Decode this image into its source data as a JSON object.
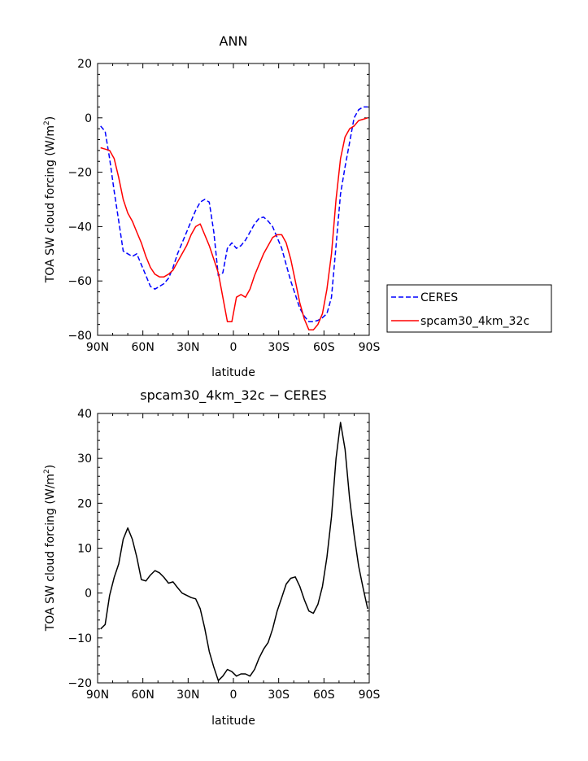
{
  "chart_data": [
    {
      "type": "line",
      "title": "ANN",
      "xlabel": "latitude",
      "ylabel": "TOA SW cloud forcing (W/m",
      "ylabel_sup": "2",
      "ylabel_close": ")",
      "xlim": [
        90,
        -90
      ],
      "ylim": [
        -80,
        20
      ],
      "x_ticks": [
        {
          "value": 90,
          "label": "90N"
        },
        {
          "value": 60,
          "label": "60N"
        },
        {
          "value": 30,
          "label": "30N"
        },
        {
          "value": 0,
          "label": "0"
        },
        {
          "value": -30,
          "label": "30S"
        },
        {
          "value": -60,
          "label": "60S"
        },
        {
          "value": -90,
          "label": "90S"
        }
      ],
      "y_ticks": [
        20,
        0,
        -20,
        -40,
        -60,
        -80
      ],
      "legend_position": "right",
      "series": [
        {
          "name": "CERES",
          "color": "#0000ff",
          "dash": "dashed",
          "x": [
            88,
            85,
            82,
            79,
            76,
            73,
            70,
            67,
            64,
            61,
            58,
            55,
            52,
            49,
            46,
            43,
            40,
            37,
            34,
            31,
            28,
            25,
            22,
            19,
            16,
            13,
            10,
            7,
            4,
            1,
            -2,
            -5,
            -8,
            -11,
            -14,
            -17,
            -20,
            -23,
            -26,
            -29,
            -32,
            -35,
            -38,
            -41,
            -44,
            -47,
            -50,
            -53,
            -56,
            -59,
            -62,
            -65,
            -68,
            -71,
            -74,
            -77,
            -80,
            -83,
            -86,
            -89
          ],
          "y": [
            -3,
            -5,
            -15,
            -27,
            -38,
            -49,
            -50,
            -51,
            -50,
            -54,
            -58,
            -62,
            -63,
            -62,
            -61,
            -59,
            -55,
            -50,
            -46,
            -42,
            -38,
            -34,
            -31,
            -30,
            -31,
            -42,
            -58,
            -57,
            -48,
            -46,
            -48,
            -47,
            -45,
            -42,
            -39,
            -37,
            -36.5,
            -38,
            -40,
            -44,
            -48,
            -54,
            -60,
            -65,
            -70,
            -73,
            -75,
            -75,
            -74.5,
            -73.5,
            -72,
            -66,
            -47,
            -28,
            -18,
            -9,
            0,
            3,
            4,
            4
          ]
        },
        {
          "name": "spcam30_4km_32c",
          "color": "#ff0000",
          "dash": "solid",
          "x": [
            88,
            85,
            82,
            79,
            76,
            73,
            70,
            67,
            64,
            61,
            58,
            55,
            52,
            49,
            46,
            43,
            40,
            37,
            34,
            31,
            28,
            25,
            22,
            19,
            16,
            13,
            10,
            7,
            4,
            1,
            -2,
            -5,
            -8,
            -11,
            -14,
            -17,
            -20,
            -23,
            -26,
            -29,
            -32,
            -35,
            -38,
            -41,
            -44,
            -47,
            -50,
            -53,
            -56,
            -59,
            -62,
            -65,
            -68,
            -71,
            -74,
            -77,
            -80,
            -83,
            -86,
            -89
          ],
          "y": [
            -11,
            -11.5,
            -12,
            -15,
            -22,
            -30,
            -35,
            -38,
            -42,
            -46,
            -51,
            -55,
            -57.5,
            -58.5,
            -58.5,
            -57.5,
            -56,
            -53,
            -50,
            -47,
            -43,
            -40,
            -39,
            -43,
            -47,
            -52,
            -57,
            -66,
            -75,
            -75,
            -66,
            -65,
            -66,
            -63,
            -58,
            -54,
            -50,
            -47,
            -44,
            -43,
            -43,
            -46,
            -52,
            -60,
            -68,
            -74,
            -78,
            -78,
            -76,
            -72,
            -63,
            -50,
            -30,
            -15,
            -7,
            -4,
            -3,
            -1,
            -0.5,
            0
          ]
        }
      ]
    },
    {
      "type": "line",
      "title": "spcam30_4km_32c − CERES",
      "xlabel": "latitude",
      "ylabel": "TOA SW cloud forcing (W/m",
      "ylabel_sup": "2",
      "ylabel_close": ")",
      "xlim": [
        90,
        -90
      ],
      "ylim": [
        -20,
        40
      ],
      "x_ticks": [
        {
          "value": 90,
          "label": "90N"
        },
        {
          "value": 60,
          "label": "60N"
        },
        {
          "value": 30,
          "label": "30N"
        },
        {
          "value": 0,
          "label": "0"
        },
        {
          "value": -30,
          "label": "30S"
        },
        {
          "value": -60,
          "label": "60S"
        },
        {
          "value": -90,
          "label": "90S"
        }
      ],
      "y_ticks": [
        40,
        30,
        20,
        10,
        0,
        -10,
        -20
      ],
      "series": [
        {
          "color": "#000000",
          "dash": "solid",
          "x": [
            88,
            85,
            82,
            79,
            76,
            73,
            70,
            67,
            64,
            61,
            58,
            55,
            52,
            49,
            46,
            43,
            40,
            37,
            34,
            31,
            28,
            25,
            22,
            19,
            16,
            13,
            10,
            7,
            4,
            1,
            -2,
            -5,
            -8,
            -11,
            -14,
            -17,
            -20,
            -23,
            -26,
            -29,
            -32,
            -35,
            -38,
            -41,
            -44,
            -47,
            -50,
            -53,
            -56,
            -59,
            -62,
            -65,
            -68,
            -71,
            -74,
            -77,
            -80,
            -83,
            -86,
            -89
          ],
          "y": [
            -8,
            -7,
            -0.5,
            3.5,
            6.5,
            12,
            14.5,
            12,
            8,
            3,
            2.7,
            4,
            5,
            4.5,
            3.5,
            2.2,
            2.5,
            1.2,
            0,
            -0.5,
            -1,
            -1.3,
            -3.5,
            -7.8,
            -13,
            -16.5,
            -19.5,
            -18.5,
            -17,
            -17.5,
            -18.5,
            -18,
            -18,
            -18.5,
            -17,
            -14.5,
            -12.5,
            -11,
            -8,
            -4,
            -1,
            2,
            3.3,
            3.6,
            1.5,
            -1.5,
            -4,
            -4.5,
            -2.5,
            1.5,
            8,
            17,
            30,
            38,
            32,
            21,
            13,
            6,
            1,
            -3.5
          ]
        }
      ]
    }
  ]
}
